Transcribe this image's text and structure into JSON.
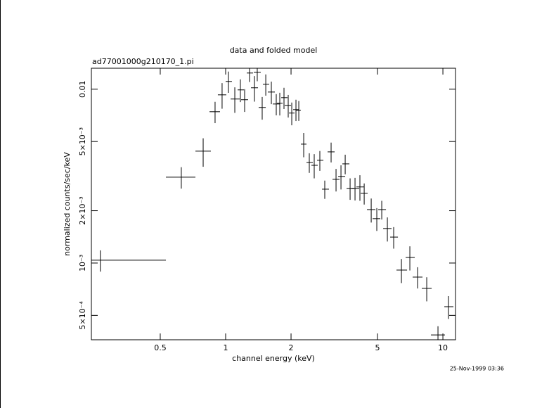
{
  "chart_data": {
    "type": "scatter",
    "title": "data and folded model",
    "subtitle": "ad77001000g210170_1.pi",
    "x_label": "channel energy (keV)",
    "y_label": "normalized counts/sec/keV",
    "timestamp": "25-Nov-1999 03:36",
    "log_x": true,
    "log_y": true,
    "color": "#000000",
    "xlim": [
      0.241,
      11.43
    ],
    "ylim": [
      0.000362,
      0.0132
    ],
    "xticks": [
      0.5,
      1,
      2,
      5,
      10
    ],
    "yticks": [
      {
        "value": 0.0005,
        "label": "5×10⁻⁴"
      },
      {
        "value": 0.001,
        "label": "10⁻³"
      },
      {
        "value": 0.002,
        "label": "2×10⁻³"
      },
      {
        "value": 0.005,
        "label": "5×10⁻³"
      },
      0.01
    ],
    "x": [
      0.265,
      0.625,
      0.788,
      0.894,
      0.963,
      1.03,
      1.102,
      1.169,
      1.223,
      1.288,
      1.357,
      1.398,
      1.473,
      1.53,
      1.623,
      1.71,
      1.775,
      1.856,
      1.941,
      2.015,
      2.107,
      2.171,
      2.287,
      2.427,
      2.557,
      2.714,
      2.859,
      3.058,
      3.222,
      3.395,
      3.55,
      3.74,
      3.94,
      4.15,
      4.342,
      4.677,
      4.963,
      5.23,
      5.551,
      5.935,
      6.443,
      7.045,
      7.646,
      8.425,
      9.491,
      10.61
    ],
    "x_low": [
      0.241,
      0.531,
      0.726,
      0.843,
      0.921,
      1.0,
      1.054,
      1.135,
      1.178,
      1.251,
      1.308,
      1.347,
      1.419,
      1.484,
      1.564,
      1.648,
      1.723,
      1.802,
      1.87,
      1.956,
      2.045,
      2.107,
      2.22,
      2.356,
      2.482,
      2.634,
      2.776,
      2.946,
      3.104,
      3.295,
      3.446,
      3.603,
      3.796,
      3.999,
      4.182,
      4.472,
      4.748,
      5.038,
      5.309,
      5.718,
      6.115,
      6.737,
      7.258,
      7.996,
      8.81,
      10.15
    ],
    "x_high": [
      0.531,
      0.726,
      0.855,
      0.942,
      1.007,
      1.069,
      1.161,
      1.214,
      1.269,
      1.337,
      1.409,
      1.451,
      1.53,
      1.587,
      1.685,
      1.775,
      1.829,
      1.927,
      2.0,
      2.076,
      2.171,
      2.22,
      2.356,
      2.519,
      2.654,
      2.818,
      2.99,
      3.174,
      3.344,
      3.55,
      3.712,
      3.91,
      4.12,
      4.342,
      4.506,
      4.89,
      5.152,
      5.47,
      5.804,
      6.208,
      6.839,
      7.422,
      8.055,
      8.877,
      10.22,
      11.18
    ],
    "y": [
      0.001038,
      0.00312,
      0.0044,
      0.00742,
      0.00928,
      0.01108,
      0.00878,
      0.00991,
      0.0087,
      0.01239,
      0.01019,
      0.01251,
      0.00785,
      0.01067,
      0.00963,
      0.00822,
      0.0083,
      0.00894,
      0.00807,
      0.00729,
      0.00763,
      0.00756,
      0.00483,
      0.00379,
      0.00365,
      0.0039,
      0.00266,
      0.00436,
      0.00303,
      0.00315,
      0.00372,
      0.00269,
      0.00269,
      0.00274,
      0.00252,
      0.00203,
      0.0018,
      0.00203,
      0.00158,
      0.00141,
      0.000911,
      0.001077,
      0.00083,
      0.000715,
      0.000386,
      0.000561
    ],
    "y_err": [
      0.000145,
      0.00044,
      0.00082,
      0.00104,
      0.00156,
      0.00155,
      0.00147,
      0.00148,
      0.0013,
      0.00139,
      0.00171,
      0.0014,
      0.00117,
      0.00149,
      0.00143,
      0.00115,
      0.00124,
      0.00125,
      0.0012,
      0.00109,
      0.00107,
      0.00099,
      0.00077,
      0.00049,
      0.00058,
      0.00051,
      0.00032,
      0.00057,
      0.00045,
      0.0005,
      0.00048,
      0.00038,
      0.0004,
      0.00046,
      0.00035,
      0.00032,
      0.00027,
      0.00025,
      0.00025,
      0.0002,
      0.000144,
      0.000171,
      0.000116,
      0.000113,
      4.7e-05,
      8.4e-05
    ]
  }
}
